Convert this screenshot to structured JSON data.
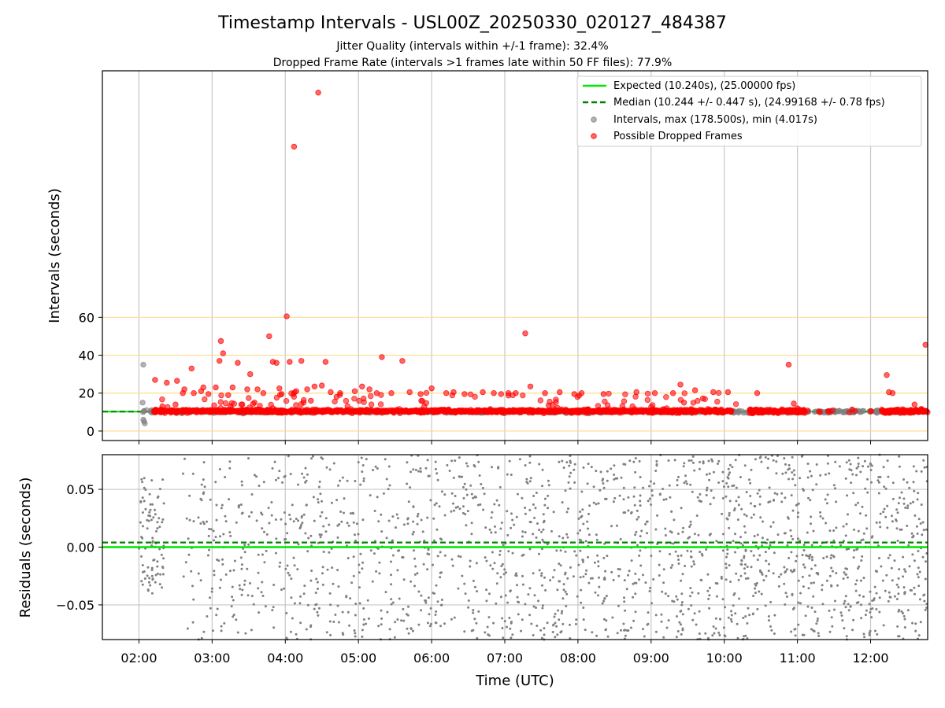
{
  "chart_data": [
    {
      "type": "scatter",
      "title": "Timestamp Intervals - USL00Z_20250330_020127_484387",
      "subtitle_lines": [
        "Jitter Quality (intervals within +/-1 frame): 32.4%",
        "Dropped Frame Rate (intervals >1 frames late within 50 FF files): 77.9%"
      ],
      "xlabel": "",
      "ylabel": "Intervals (seconds)",
      "x_unit": "hours UTC",
      "xlim": [
        1.5,
        12.78
      ],
      "ylim": [
        -5,
        190
      ],
      "yticks": [
        0,
        20,
        40,
        60
      ],
      "ytick_labels": [
        "0",
        "20",
        "40",
        "60"
      ],
      "xtick_values": [
        2,
        3,
        4,
        5,
        6,
        7,
        8,
        9,
        10,
        11,
        12
      ],
      "vertical_grid": true,
      "horizontal_gridlines": [
        0,
        20,
        40,
        60
      ],
      "horizontal_grid_color": "#ffd780",
      "legend": {
        "placement": "upper-right",
        "entries": [
          {
            "label": "Expected (10.240s), (25.00000 fps)",
            "kind": "line-solid",
            "color": "#00e600"
          },
          {
            "label": "Median (10.244 +/- 0.447 s), (24.99168 +/- 0.78 fps)",
            "kind": "line-dashed",
            "color": "#008000"
          },
          {
            "label": "Intervals, max (178.500s), min (4.017s)",
            "kind": "marker",
            "color": "#808080"
          },
          {
            "label": "Possible Dropped Frames",
            "kind": "marker",
            "color": "#ff0000"
          }
        ]
      },
      "series": [
        {
          "name": "Expected (10.240s), (25.00000 fps)",
          "kind": "hline",
          "y": 10.24,
          "color": "#00e600"
        },
        {
          "name": "Median (10.244 +/- 0.447 s), (24.99168 +/- 0.78 fps)",
          "kind": "hline-dashed",
          "y": 10.244,
          "color": "#008000"
        },
        {
          "name": "Intervals, max (178.500s), min (4.017s)",
          "color": "#808080",
          "baseline": {
            "x_range": [
              2.05,
              12.75
            ],
            "y_center": 10.24,
            "y_spread": 1.2
          },
          "points": [
            [
              2.06,
              35
            ],
            [
              2.05,
              15
            ],
            [
              2.07,
              5
            ],
            [
              2.08,
              4
            ],
            [
              2.06,
              6
            ]
          ]
        },
        {
          "name": "Possible Dropped Frames",
          "color": "#ff0000",
          "baseline": {
            "x_range": [
              2.2,
              12.78
            ],
            "y_center": 10.5,
            "y_spread": 1.6
          },
          "points": [
            [
              4.45,
              178.5
            ],
            [
              4.12,
              150
            ],
            [
              4.02,
              60.5
            ],
            [
              7.28,
              51.5
            ],
            [
              3.78,
              50
            ],
            [
              3.12,
              47.5
            ],
            [
              12.75,
              45.5
            ],
            [
              3.15,
              41
            ],
            [
              5.32,
              39
            ],
            [
              3.1,
              37
            ],
            [
              3.35,
              36
            ],
            [
              3.83,
              36.5
            ],
            [
              3.88,
              36
            ],
            [
              4.06,
              36.5
            ],
            [
              4.22,
              37
            ],
            [
              4.55,
              36.5
            ],
            [
              5.6,
              37
            ],
            [
              10.88,
              35
            ],
            [
              12.22,
              29.5
            ],
            [
              3.52,
              30
            ],
            [
              2.72,
              33
            ],
            [
              2.22,
              27
            ],
            [
              2.38,
              25.5
            ],
            [
              2.52,
              26.5
            ],
            [
              2.62,
              22
            ],
            [
              2.88,
              23
            ],
            [
              3.05,
              23
            ],
            [
              3.28,
              23
            ],
            [
              3.48,
              22
            ],
            [
              3.62,
              22
            ],
            [
              3.92,
              22.5
            ],
            [
              4.3,
              22
            ],
            [
              4.4,
              23.5
            ],
            [
              4.5,
              24
            ],
            [
              4.62,
              20.5
            ],
            [
              4.75,
              20
            ],
            [
              4.95,
              21
            ],
            [
              5.05,
              23.5
            ],
            [
              5.15,
              22
            ],
            [
              5.45,
              20
            ],
            [
              5.7,
              20.5
            ],
            [
              5.85,
              19.5
            ],
            [
              6.0,
              22.5
            ],
            [
              6.2,
              20
            ],
            [
              6.45,
              19.5
            ],
            [
              6.7,
              20.5
            ],
            [
              6.95,
              19.5
            ],
            [
              7.15,
              20
            ],
            [
              7.35,
              23.5
            ],
            [
              7.55,
              20
            ],
            [
              7.75,
              20.5
            ],
            [
              7.95,
              19.5
            ],
            [
              8.05,
              20
            ],
            [
              8.35,
              19.5
            ],
            [
              8.8,
              20.5
            ],
            [
              9.05,
              20
            ],
            [
              9.3,
              20
            ],
            [
              9.4,
              24.5
            ],
            [
              9.6,
              21.5
            ],
            [
              9.85,
              20.5
            ],
            [
              10.05,
              20.5
            ],
            [
              10.45,
              20
            ],
            [
              12.3,
              20
            ],
            [
              12.25,
              20.5
            ],
            [
              3.7,
              20
            ],
            [
              3.95,
              19.5
            ],
            [
              2.75,
              20
            ],
            [
              2.95,
              19.5
            ],
            [
              3.22,
              19
            ],
            [
              2.6,
              20
            ],
            [
              2.85,
              21
            ],
            [
              4.15,
              21
            ],
            [
              4.35,
              16
            ],
            [
              4.25,
              15
            ],
            [
              3.58,
              15
            ],
            [
              3.4,
              14
            ],
            [
              3.25,
              13
            ],
            [
              2.5,
              14
            ],
            [
              2.32,
              13
            ],
            [
              9.45,
              15
            ],
            [
              10.95,
              14.5
            ],
            [
              12.6,
              14
            ],
            [
              7.6,
              13.5
            ],
            [
              5.9,
              13
            ],
            [
              11.0,
              12
            ],
            [
              4.7,
              18
            ],
            [
              5.25,
              20
            ],
            [
              6.3,
              20.5
            ],
            [
              6.85,
              20
            ],
            [
              7.05,
              20
            ]
          ]
        }
      ]
    },
    {
      "type": "scatter",
      "xlabel": "Time (UTC)",
      "ylabel": "Residuals (seconds)",
      "x_unit": "hours UTC",
      "xlim": [
        1.5,
        12.78
      ],
      "ylim": [
        -0.08,
        0.08
      ],
      "yticks": [
        -0.05,
        0.0,
        0.05
      ],
      "ytick_labels": [
        "−0.05",
        "0.00",
        "0.05"
      ],
      "xtick_values": [
        2,
        3,
        4,
        5,
        6,
        7,
        8,
        9,
        10,
        11,
        12
      ],
      "xtick_labels": [
        "02:00",
        "03:00",
        "04:00",
        "05:00",
        "06:00",
        "07:00",
        "08:00",
        "09:00",
        "10:00",
        "11:00",
        "12:00"
      ],
      "grid": true,
      "series": [
        {
          "kind": "hline",
          "y": 0.0,
          "color": "#00e600"
        },
        {
          "kind": "hline-dashed",
          "y": 0.004,
          "color": "#008000"
        },
        {
          "kind": "scatter",
          "color": "#808080",
          "distribution": {
            "x_range": [
              2.0,
              12.78
            ],
            "y_range": [
              -0.08,
              0.08
            ],
            "dense_blocks": [
              {
                "x_range": [
                  2.0,
                  2.35
                ],
                "y_range": [
                  -0.04,
                  0.06
                ],
                "count": 90
              },
              {
                "x_range": [
                  2.6,
                  3.9
                ],
                "y_range": [
                  -0.08,
                  0.08
                ],
                "count": 160
              },
              {
                "x_range": [
                  3.9,
                  6.0
                ],
                "y_range": [
                  -0.08,
                  0.08
                ],
                "count": 330
              },
              {
                "x_range": [
                  6.0,
                  9.5
                ],
                "y_range": [
                  -0.08,
                  0.08
                ],
                "count": 620
              },
              {
                "x_range": [
                  9.5,
                  12.78
                ],
                "y_range": [
                  -0.08,
                  0.08
                ],
                "count": 720
              }
            ]
          }
        }
      ]
    }
  ]
}
